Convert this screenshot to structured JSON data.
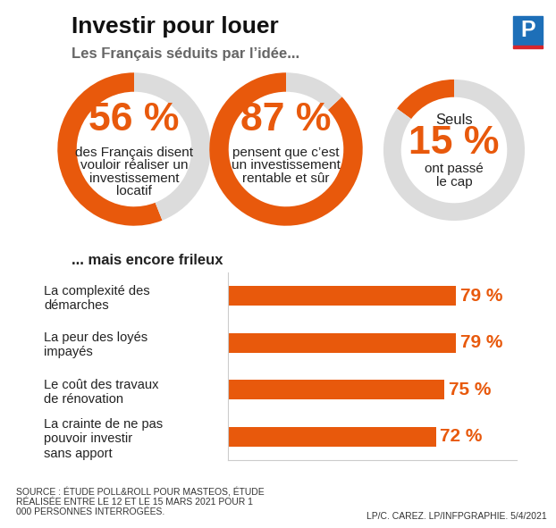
{
  "title": "Investir pour louer",
  "logo": "P",
  "subtitle": "Les Français séduits par l’idée...",
  "chart_data": [
    {
      "type": "pie",
      "values": [
        56,
        44
      ],
      "colors": [
        "#e8590c",
        "#dcdcdc"
      ],
      "value_labels": [
        "56 %",
        null
      ],
      "text": "des Français disent vouloir réaliser un investissement locatif"
    },
    {
      "type": "pie",
      "values": [
        87,
        13
      ],
      "colors": [
        "#e8590c",
        "#dcdcdc"
      ],
      "value_labels": [
        "87 %",
        null
      ],
      "text": "pensent que c’est un investissement rentable et sûr"
    },
    {
      "type": "pie",
      "values": [
        15,
        85
      ],
      "colors": [
        "#e8590c",
        "#dcdcdc"
      ],
      "value_labels": [
        "15 %",
        null
      ],
      "text_before": "Seuls",
      "text": "ont passé le cap"
    },
    {
      "type": "bar",
      "orientation": "horizontal",
      "subtitle": "... mais encore frileux",
      "categories": [
        "La complexité des démarches",
        "La peur des loyés impayés",
        "Le coût des travaux de rénovation",
        "La crainte de ne pas pouvoir investir sans apport"
      ],
      "values": [
        79,
        79,
        75,
        72
      ],
      "value_labels": [
        "79 %",
        "79 %",
        "75 %",
        "72 %"
      ],
      "data_labels": true,
      "color": "#e8590c",
      "xlim": [
        0,
        100
      ],
      "tick_labels": "y"
    }
  ],
  "source": "SOURCE : ÉTUDE POLL&ROLL POUR MASTEOS, ÉTUDE RÉALISÉE ENTRE LE 12 ET LE 15 MARS 2021 POUR 1 000 PERSONNES INTERROGÉES.",
  "credit": "LP/C. CAREZ. LP/INFPGRAPHIE. 5/4/2021"
}
